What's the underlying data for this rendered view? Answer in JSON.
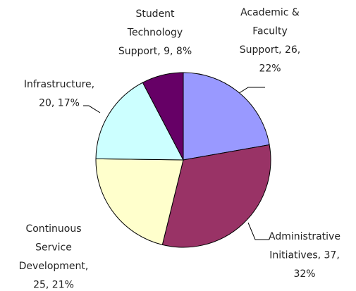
{
  "chart_data": {
    "type": "pie",
    "categories": [
      "Academic & Faculty Support",
      "Administrative Initiatives",
      "Continuous Service Development",
      "Infrastructure",
      "Student Technology Support"
    ],
    "values": [
      26,
      37,
      25,
      20,
      9
    ],
    "value_labels": [
      [
        "Academic &",
        "Faculty",
        "Support, 26,",
        "22%"
      ],
      [
        "Administrative",
        "Initiatives, 37,",
        "32%"
      ],
      [
        "Continuous",
        "Service",
        "Development,",
        "25, 21%"
      ],
      [
        "Infrastructure,",
        "20, 17%"
      ],
      [
        "Student",
        "Technology",
        "Support, 9, 8%"
      ]
    ],
    "colors": [
      "#9999ff",
      "#993366",
      "#ffffcc",
      "#ccffff",
      "#660066"
    ]
  }
}
